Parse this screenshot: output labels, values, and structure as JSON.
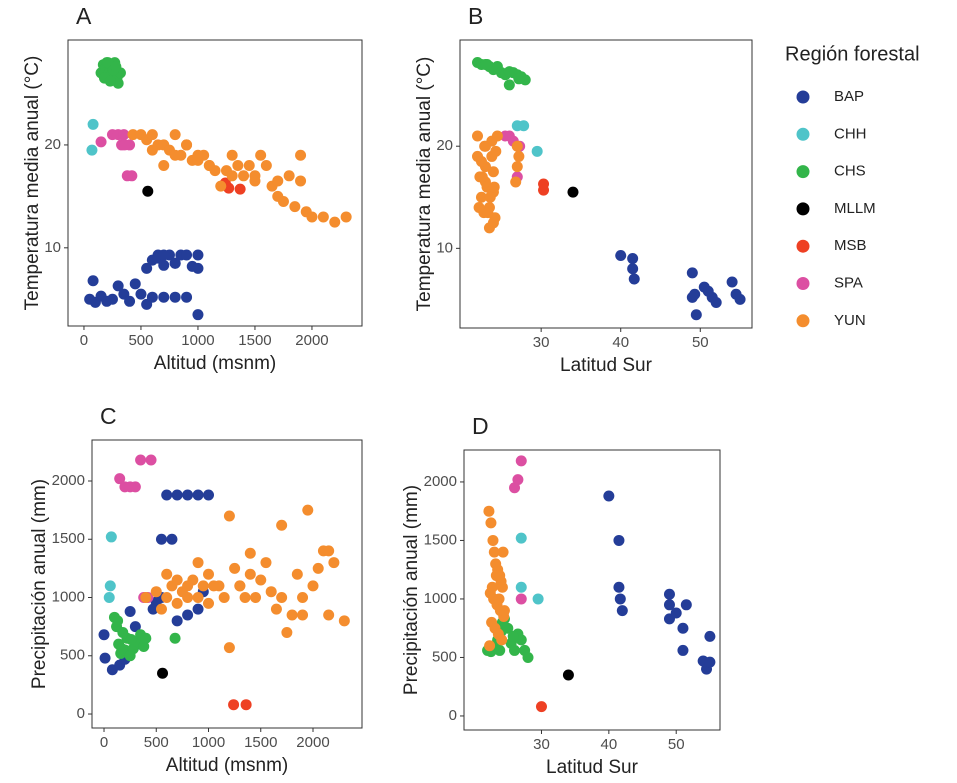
{
  "legend_title": "Región  forestal",
  "chart_data": [
    {
      "type": "scatter",
      "panel_label": "A",
      "xlabel": "Altitud (msnm)",
      "ylabel": "Temperatura media anual (°C)",
      "xlim": [
        -140,
        2439
      ],
      "ylim": [
        2.4,
        30.2
      ],
      "xticks": [
        0,
        500,
        1000,
        1500,
        2000
      ],
      "yticks": [
        10,
        20
      ],
      "series": [
        {
          "name": "BAP",
          "color": "#243d98",
          "x": [
            50,
            80,
            100,
            150,
            200,
            250,
            300,
            350,
            400,
            450,
            500,
            550,
            600,
            650,
            700,
            750,
            800,
            850,
            900,
            950,
            1000,
            550,
            650,
            700,
            800,
            900,
            1000,
            600,
            700,
            800,
            1000
          ],
          "values": [
            5,
            6.8,
            4.7,
            5.3,
            4.8,
            5,
            6.3,
            5.5,
            4.8,
            6.5,
            5.5,
            4.5,
            8.8,
            9.3,
            8.3,
            9.3,
            8.5,
            9.3,
            9.3,
            8.2,
            9.3,
            8,
            9,
            9.3,
            5.2,
            5.2,
            3.5,
            5.2,
            5.2,
            8.5,
            8
          ]
        },
        {
          "name": "CHH",
          "color": "#4fc4c9",
          "x": [
            80,
            70
          ],
          "values": [
            22,
            19.5
          ]
        },
        {
          "name": "CHS",
          "color": "#33b54a",
          "x": [
            150,
            170,
            190,
            200,
            220,
            240,
            250,
            270,
            290,
            300,
            320,
            180,
            210,
            260,
            280,
            230
          ],
          "values": [
            27,
            27.8,
            27.5,
            28,
            27,
            26.8,
            27.5,
            28,
            26.5,
            26,
            27,
            26.5,
            28,
            27.3,
            27.6,
            26.2
          ]
        },
        {
          "name": "MLLM",
          "color": "#000000",
          "x": [
            560
          ],
          "values": [
            15.5
          ]
        },
        {
          "name": "MSB",
          "color": "#ee4023",
          "x": [
            1240,
            1270,
            1370
          ],
          "values": [
            16.3,
            15.8,
            15.7
          ]
        },
        {
          "name": "SPA",
          "color": "#dc4fa2",
          "x": [
            150,
            250,
            300,
            350,
            400,
            420,
            380,
            330,
            360
          ],
          "values": [
            20.3,
            21,
            21,
            21,
            20,
            17,
            17,
            20,
            20
          ]
        },
        {
          "name": "YUN",
          "color": "#f48d2e",
          "x": [
            430,
            500,
            550,
            600,
            650,
            700,
            750,
            800,
            850,
            900,
            950,
            1000,
            1050,
            1100,
            1150,
            1200,
            1250,
            1300,
            1350,
            1400,
            1450,
            1500,
            1550,
            1600,
            1650,
            1700,
            1750,
            1800,
            1850,
            1900,
            1950,
            2000,
            2100,
            2200,
            2300,
            600,
            700,
            800,
            900,
            1000,
            1100,
            1300,
            1500,
            1700,
            1900
          ],
          "values": [
            21,
            21,
            20.5,
            21,
            20,
            20,
            19.5,
            21,
            19,
            20,
            18.5,
            18.5,
            19,
            18,
            17.5,
            16,
            17.5,
            19,
            18,
            17,
            18,
            16.5,
            19,
            18,
            16,
            16.5,
            14.5,
            17,
            14,
            19,
            13.5,
            13,
            13,
            12.5,
            13,
            19.5,
            18,
            19,
            20,
            19,
            18,
            17,
            17,
            15,
            16.5
          ]
        }
      ]
    },
    {
      "type": "scatter",
      "panel_label": "B",
      "xlabel": "Latitud Sur",
      "ylabel": "Temperatura media anual (°C)",
      "xlim": [
        19.8,
        56.5
      ],
      "ylim": [
        2.2,
        30.4
      ],
      "xticks": [
        30,
        40,
        50
      ],
      "yticks": [
        10,
        20
      ],
      "series": [
        {
          "name": "BAP",
          "color": "#243d98",
          "x": [
            40,
            41.5,
            41.5,
            41.7,
            49,
            49,
            49.5,
            50.5,
            51.5,
            52,
            54,
            54.5,
            55,
            49.3,
            51
          ],
          "values": [
            9.3,
            9,
            8,
            7,
            7.6,
            5.2,
            3.5,
            6.2,
            5.2,
            4.7,
            6.7,
            5.5,
            5,
            5.5,
            5.8
          ]
        },
        {
          "name": "CHH",
          "color": "#4fc4c9",
          "x": [
            27,
            27.8,
            29.5
          ],
          "values": [
            22,
            22,
            19.5
          ]
        },
        {
          "name": "CHS",
          "color": "#33b54a",
          "x": [
            22,
            22.5,
            23,
            23.5,
            24,
            24.5,
            25,
            25.5,
            26,
            26.5,
            27,
            27.5,
            28,
            26,
            23.2,
            27.2
          ],
          "values": [
            28.2,
            28,
            28,
            27.8,
            27.5,
            27.8,
            27.2,
            27,
            26,
            27.2,
            27,
            26.8,
            26.5,
            27.3,
            28,
            26.6
          ]
        },
        {
          "name": "MLLM",
          "color": "#000000",
          "x": [
            34
          ],
          "values": [
            15.5
          ]
        },
        {
          "name": "MSB",
          "color": "#ee4023",
          "x": [
            30.3,
            30.3
          ],
          "values": [
            16.3,
            15.7
          ]
        },
        {
          "name": "SPA",
          "color": "#dc4fa2",
          "x": [
            26,
            26.5,
            27,
            27.3,
            25.5
          ],
          "values": [
            21,
            20.5,
            17,
            20,
            21
          ]
        },
        {
          "name": "YUN",
          "color": "#f48d2e",
          "x": [
            22,
            22,
            22.3,
            22.5,
            22.8,
            23,
            23,
            23.2,
            23.5,
            23.5,
            23.8,
            24,
            24,
            24.2,
            24.5,
            22.5,
            23,
            23.8,
            24.3,
            22.2,
            23.3,
            24,
            27,
            27,
            26.8,
            27.2,
            22.6,
            23.6,
            24.1,
            22.9
          ],
          "values": [
            21,
            19,
            17,
            15,
            13.5,
            20,
            18,
            16,
            14,
            12,
            19,
            17.5,
            15.5,
            13,
            21,
            18.5,
            16.5,
            20.5,
            19.5,
            14,
            13.5,
            12.5,
            20,
            18,
            16.5,
            19,
            17,
            15,
            16,
            20
          ]
        }
      ]
    },
    {
      "type": "scatter",
      "panel_label": "C",
      "xlabel": "Altitud (msnm)",
      "ylabel": "Precipitación anual (mm)",
      "xlim": [
        -115,
        2469
      ],
      "ylim": [
        -120,
        2352
      ],
      "xticks": [
        0,
        500,
        1000,
        1500,
        2000
      ],
      "yticks": [
        0,
        500,
        1000,
        1500,
        2000
      ],
      "series": [
        {
          "name": "BAP",
          "color": "#243d98",
          "x": [
            0,
            10,
            80,
            150,
            200,
            250,
            300,
            350,
            470,
            500,
            550,
            650,
            600,
            700,
            800,
            900,
            1000,
            700,
            800,
            950,
            900,
            550
          ],
          "values": [
            680,
            480,
            380,
            420,
            470,
            880,
            750,
            600,
            900,
            960,
            1500,
            1500,
            1880,
            1880,
            1880,
            1880,
            1880,
            800,
            850,
            1050,
            900,
            1000
          ]
        },
        {
          "name": "CHH",
          "color": "#4fc4c9",
          "x": [
            70,
            60,
            50
          ],
          "values": [
            1520,
            1100,
            1000
          ]
        },
        {
          "name": "CHS",
          "color": "#33b54a",
          "x": [
            100,
            120,
            140,
            160,
            180,
            200,
            220,
            250,
            280,
            300,
            320,
            350,
            380,
            400,
            130,
            170,
            260,
            680
          ],
          "values": [
            830,
            750,
            600,
            520,
            700,
            550,
            650,
            500,
            560,
            600,
            620,
            680,
            580,
            650,
            800,
            560,
            640,
            650
          ]
        },
        {
          "name": "MLLM",
          "color": "#000000",
          "x": [
            560
          ],
          "values": [
            350
          ]
        },
        {
          "name": "MSB",
          "color": "#ee4023",
          "x": [
            1240,
            1360
          ],
          "values": [
            80,
            80
          ]
        },
        {
          "name": "SPA",
          "color": "#dc4fa2",
          "x": [
            150,
            200,
            300,
            350,
            450,
            380,
            420,
            250
          ],
          "values": [
            2020,
            1950,
            1950,
            2180,
            2180,
            1000,
            1000,
            1950
          ]
        },
        {
          "name": "YUN",
          "color": "#f48d2e",
          "x": [
            400,
            500,
            550,
            600,
            650,
            700,
            750,
            800,
            850,
            900,
            950,
            1000,
            1100,
            1150,
            1200,
            1250,
            1300,
            1350,
            1400,
            1450,
            1500,
            1550,
            1600,
            1650,
            1700,
            1750,
            1800,
            1850,
            1900,
            1950,
            2000,
            2050,
            2100,
            2150,
            2200,
            2300,
            600,
            700,
            900,
            1050,
            1200,
            1400,
            1700,
            1900,
            2150,
            1300,
            1000,
            800
          ],
          "values": [
            1000,
            1050,
            900,
            1200,
            1100,
            950,
            1050,
            1000,
            1150,
            1000,
            1100,
            950,
            1100,
            1000,
            570,
            1250,
            1100,
            1000,
            1380,
            1000,
            1150,
            1300,
            1050,
            900,
            1620,
            700,
            850,
            1200,
            1000,
            1750,
            1100,
            1250,
            1400,
            850,
            1300,
            800,
            1000,
            1150,
            1300,
            1100,
            1700,
            1200,
            1000,
            850,
            1400,
            1100,
            1200,
            1100
          ]
        }
      ]
    },
    {
      "type": "scatter",
      "panel_label": "D",
      "xlabel": "Latitud Sur",
      "ylabel": "Precipitación anual (mm)",
      "xlim": [
        18.5,
        56.5
      ],
      "ylim": [
        -120,
        2273
      ],
      "xticks": [
        30,
        40,
        50
      ],
      "yticks": [
        0,
        500,
        1000,
        1500,
        2000
      ],
      "series": [
        {
          "name": "BAP",
          "color": "#243d98",
          "x": [
            40,
            41.5,
            41.5,
            41.7,
            42,
            49,
            49,
            49,
            50,
            51,
            51.5,
            51,
            54,
            54.5,
            55,
            55
          ],
          "values": [
            1880,
            1500,
            1100,
            1000,
            900,
            1040,
            950,
            830,
            880,
            750,
            950,
            560,
            470,
            400,
            680,
            460
          ]
        },
        {
          "name": "CHH",
          "color": "#4fc4c9",
          "x": [
            27,
            27,
            29.5
          ],
          "values": [
            1520,
            1100,
            1000
          ]
        },
        {
          "name": "CHS",
          "color": "#33b54a",
          "x": [
            22,
            22.5,
            23,
            23.5,
            24,
            24.5,
            25,
            25.5,
            26,
            26.5,
            27,
            27.5,
            28,
            24.2,
            25.8,
            23.8
          ],
          "values": [
            560,
            550,
            600,
            650,
            720,
            830,
            750,
            620,
            560,
            700,
            650,
            560,
            500,
            800,
            680,
            560
          ]
        },
        {
          "name": "MLLM",
          "color": "#000000",
          "x": [
            34
          ],
          "values": [
            350
          ]
        },
        {
          "name": "MSB",
          "color": "#ee4023",
          "x": [
            30
          ],
          "values": [
            80
          ]
        },
        {
          "name": "SPA",
          "color": "#dc4fa2",
          "x": [
            26,
            26.5,
            27,
            27
          ],
          "values": [
            1950,
            2020,
            2180,
            1000
          ]
        },
        {
          "name": "YUN",
          "color": "#f48d2e",
          "x": [
            22.2,
            22.5,
            22.8,
            23,
            23.2,
            23.5,
            23.8,
            24,
            24.2,
            22.4,
            22.9,
            23.4,
            23.9,
            24.4,
            22.6,
            23.1,
            23.6,
            24.1,
            22.3,
            23.3,
            24.3,
            22.7,
            23.7,
            24.5
          ],
          "values": [
            1750,
            1650,
            1500,
            1400,
            1300,
            1250,
            1200,
            1150,
            1100,
            1050,
            1000,
            950,
            900,
            850,
            800,
            750,
            700,
            650,
            600,
            1200,
            1400,
            1100,
            1000,
            900
          ]
        }
      ]
    }
  ]
}
